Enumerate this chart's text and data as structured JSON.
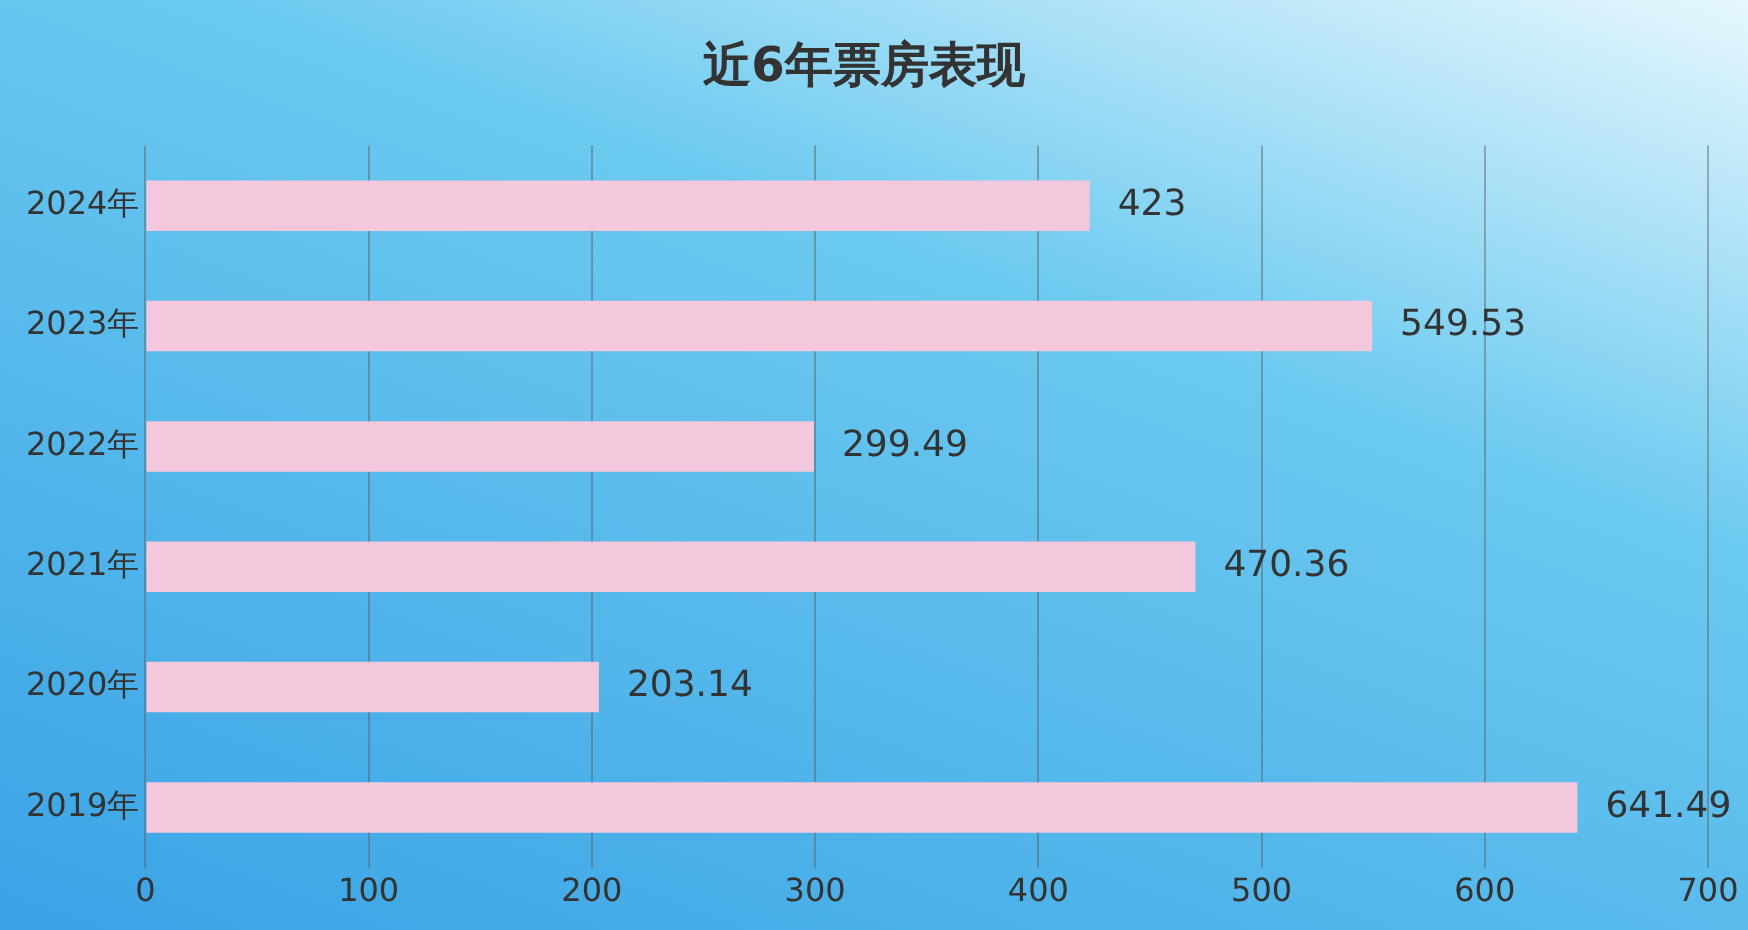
{
  "chart_data": {
    "type": "bar",
    "orientation": "horizontal",
    "title": "近6年票房表现",
    "categories": [
      "2024年",
      "2023年",
      "2022年",
      "2021年",
      "2020年",
      "2019年"
    ],
    "values": [
      423,
      549.53,
      299.49,
      470.36,
      203.14,
      641.49
    ],
    "color": "#f4c8dc",
    "xlim": [
      0,
      700
    ],
    "xticks": [
      0,
      100,
      200,
      300,
      400,
      500,
      600,
      700
    ],
    "grid": "x",
    "data_labels": true,
    "legend": false
  }
}
